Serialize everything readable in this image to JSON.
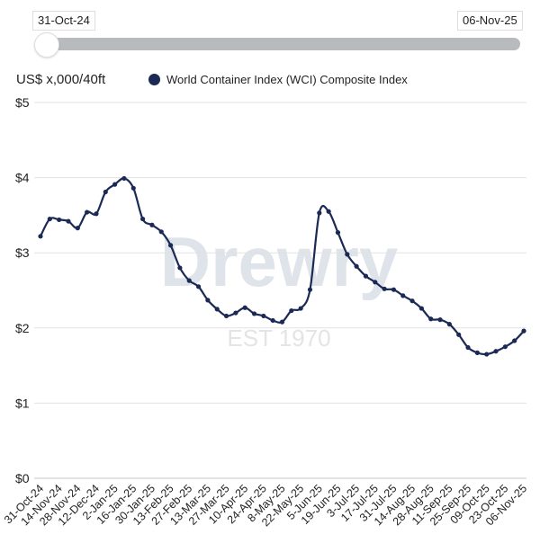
{
  "range_slider": {
    "start_label": "31-Oct-24",
    "end_label": "06-Nov-25",
    "start_position": 0,
    "end_position": 1
  },
  "watermark": {
    "brand": "Drewry",
    "tagline": "EST 1970"
  },
  "colors": {
    "series": "#1b2a55",
    "grid": "#e2e2e2",
    "track": "#b8babd"
  },
  "chart_data": {
    "type": "line",
    "title": "",
    "ylabel": "US$ x,000/40ft",
    "xlabel": "",
    "ylim": [
      0,
      5
    ],
    "y_ticks": [
      0,
      1,
      2,
      3,
      4,
      5
    ],
    "y_tick_labels": [
      "$0",
      "$1",
      "$2",
      "$3",
      "$4",
      "$5"
    ],
    "grid": true,
    "legend_placement": "top",
    "tick_labels": [
      "31-Oct-24",
      "14-Nov-24",
      "28-Nov-24",
      "12-Dec-24",
      "2-Jan-25",
      "16-Jan-25",
      "30-Jan-25",
      "13-Feb-25",
      "27-Feb-25",
      "13-Mar-25",
      "27-Mar-25",
      "10-Apr-25",
      "24-Apr-25",
      "8-May-25",
      "22-May-25",
      "5-Jun-25",
      "19-Jun-25",
      "3-Jul-25",
      "17-Jul-25",
      "31-Jul-25",
      "14-Aug-25",
      "28-Aug-25",
      "11-Sep-25",
      "25-Sep-25",
      "09-Oct-25",
      "23-Oct-25",
      "06-Nov-25"
    ],
    "tick_every": 2,
    "series": [
      {
        "name": "World Container Index (WCI) Composite Index",
        "values": [
          3.22,
          3.45,
          3.44,
          3.42,
          3.33,
          3.54,
          3.52,
          3.81,
          3.91,
          3.99,
          3.86,
          3.45,
          3.37,
          3.28,
          3.1,
          2.8,
          2.63,
          2.55,
          2.37,
          2.25,
          2.16,
          2.2,
          2.27,
          2.19,
          2.16,
          2.1,
          2.08,
          2.23,
          2.26,
          2.51,
          3.53,
          3.55,
          3.27,
          2.98,
          2.82,
          2.69,
          2.61,
          2.52,
          2.51,
          2.43,
          2.36,
          2.26,
          2.12,
          2.11,
          2.05,
          1.91,
          1.74,
          1.67,
          1.65,
          1.69,
          1.75,
          1.83,
          1.96
        ]
      }
    ]
  }
}
